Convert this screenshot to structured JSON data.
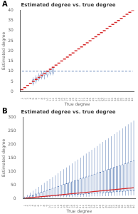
{
  "chart_data": [
    {
      "type": "box",
      "label": "A",
      "title": "Estimated degree vs. true degree",
      "x_label": "True degree",
      "y_label": "Estimated degree",
      "categories": [
        1,
        2,
        3,
        4,
        5,
        6,
        7,
        8,
        9,
        10,
        11,
        12,
        13,
        14,
        15,
        16,
        17,
        18,
        19,
        20,
        21,
        22,
        23,
        24,
        25,
        26,
        27,
        28,
        29,
        30,
        31,
        32,
        33,
        34,
        35,
        36,
        37,
        38,
        39,
        40
      ],
      "whisker_low": [
        1,
        2,
        3,
        4,
        3,
        4,
        5,
        6,
        6,
        7,
        8,
        8,
        13,
        14,
        15,
        16,
        17,
        18,
        19,
        20,
        21,
        22,
        23,
        24,
        25,
        26,
        27,
        28,
        29,
        30,
        31,
        32,
        33,
        34,
        35,
        36,
        37,
        38,
        39,
        40
      ],
      "q1": [
        1,
        2,
        3,
        4,
        4,
        5,
        6,
        7,
        8,
        8,
        9,
        9,
        13,
        14,
        15,
        16,
        17,
        18,
        19,
        20,
        21,
        22,
        23,
        24,
        25,
        26,
        27,
        28,
        29,
        30,
        31,
        32,
        33,
        34,
        35,
        36,
        37,
        38,
        39,
        40
      ],
      "values": [
        1,
        2,
        3,
        4,
        5,
        6,
        7,
        8,
        9,
        10,
        11,
        12,
        13,
        14,
        15,
        16,
        17,
        18,
        19,
        20,
        21,
        22,
        23,
        24,
        25,
        26,
        27,
        28,
        29,
        30,
        31,
        32,
        33,
        34,
        35,
        36,
        37,
        38,
        39,
        40
      ],
      "q3": [
        1,
        2,
        3,
        4,
        6,
        7,
        8,
        9,
        10,
        10,
        11,
        12,
        13,
        14,
        15,
        16,
        17,
        18,
        19,
        20,
        21,
        22,
        23,
        24,
        25,
        26,
        27,
        28,
        29,
        30,
        31,
        32,
        33,
        34,
        35,
        36,
        37,
        38,
        39,
        40
      ],
      "whisker_high": [
        1,
        2,
        3,
        4,
        7,
        8,
        9,
        10,
        10,
        10,
        11,
        12,
        13,
        14,
        15,
        16,
        17,
        18,
        19,
        20,
        21,
        22,
        23,
        24,
        25,
        26,
        27,
        28,
        29,
        30,
        31,
        32,
        33,
        34,
        35,
        36,
        37,
        38,
        39,
        40
      ],
      "reference_line": 10,
      "color": "#4c72b0",
      "marker": "dash",
      "grid": false,
      "ylim": [
        0,
        40
      ],
      "yticks": [
        0,
        5,
        10,
        15,
        20,
        25,
        30,
        35,
        40
      ]
    },
    {
      "type": "box",
      "label": "B",
      "title": "Estimated degree vs. true degree",
      "x_label": "True degree",
      "y_label": "Estimated degree",
      "categories": [
        1,
        2,
        3,
        4,
        5,
        6,
        7,
        8,
        9,
        10,
        11,
        12,
        13,
        14,
        15,
        16,
        17,
        18,
        19,
        20,
        21,
        22,
        23,
        24,
        25,
        26,
        27,
        28,
        29,
        30,
        31,
        32,
        33,
        34,
        35,
        36,
        37,
        38,
        39,
        40
      ],
      "whisker_low": [
        0,
        1,
        1,
        1,
        2,
        2,
        2,
        2,
        3,
        3,
        3,
        4,
        4,
        4,
        5,
        5,
        5,
        5,
        6,
        6,
        6,
        7,
        7,
        7,
        8,
        8,
        8,
        8,
        9,
        9,
        9,
        10,
        10,
        10,
        11,
        11,
        11,
        11,
        12,
        12
      ],
      "q1": [
        1,
        1,
        2,
        3,
        4,
        4,
        5,
        6,
        6,
        7,
        8,
        8,
        9,
        10,
        11,
        11,
        12,
        13,
        13,
        14,
        15,
        15,
        16,
        17,
        18,
        18,
        19,
        20,
        20,
        21,
        22,
        22,
        23,
        24,
        25,
        25,
        26,
        27,
        27,
        28
      ],
      "values": [
        1,
        2,
        3,
        4,
        5,
        6,
        7,
        8,
        9,
        10,
        11,
        12,
        13,
        14,
        15,
        16,
        17,
        18,
        19,
        20,
        21,
        22,
        23,
        24,
        25,
        26,
        27,
        28,
        29,
        30,
        31,
        32,
        33,
        34,
        35,
        36,
        37,
        38,
        39,
        40
      ],
      "q3": [
        4,
        7,
        11,
        14,
        18,
        21,
        25,
        28,
        32,
        35,
        39,
        42,
        46,
        49,
        53,
        56,
        60,
        63,
        67,
        70,
        74,
        77,
        81,
        84,
        88,
        91,
        95,
        98,
        102,
        105,
        109,
        112,
        116,
        119,
        123,
        126,
        130,
        133,
        137,
        140
      ],
      "whisker_high": [
        7,
        14,
        22,
        29,
        36,
        43,
        50,
        58,
        65,
        72,
        79,
        86,
        94,
        101,
        108,
        115,
        122,
        130,
        137,
        144,
        151,
        158,
        166,
        173,
        180,
        187,
        194,
        202,
        209,
        216,
        223,
        230,
        238,
        245,
        252,
        259,
        266,
        274,
        281,
        288
      ],
      "color": "#4c72b0",
      "line_style": "solid",
      "grid": false,
      "ylim": [
        0,
        300
      ],
      "yticks": [
        0,
        50,
        100,
        150,
        200,
        250,
        300
      ]
    }
  ]
}
